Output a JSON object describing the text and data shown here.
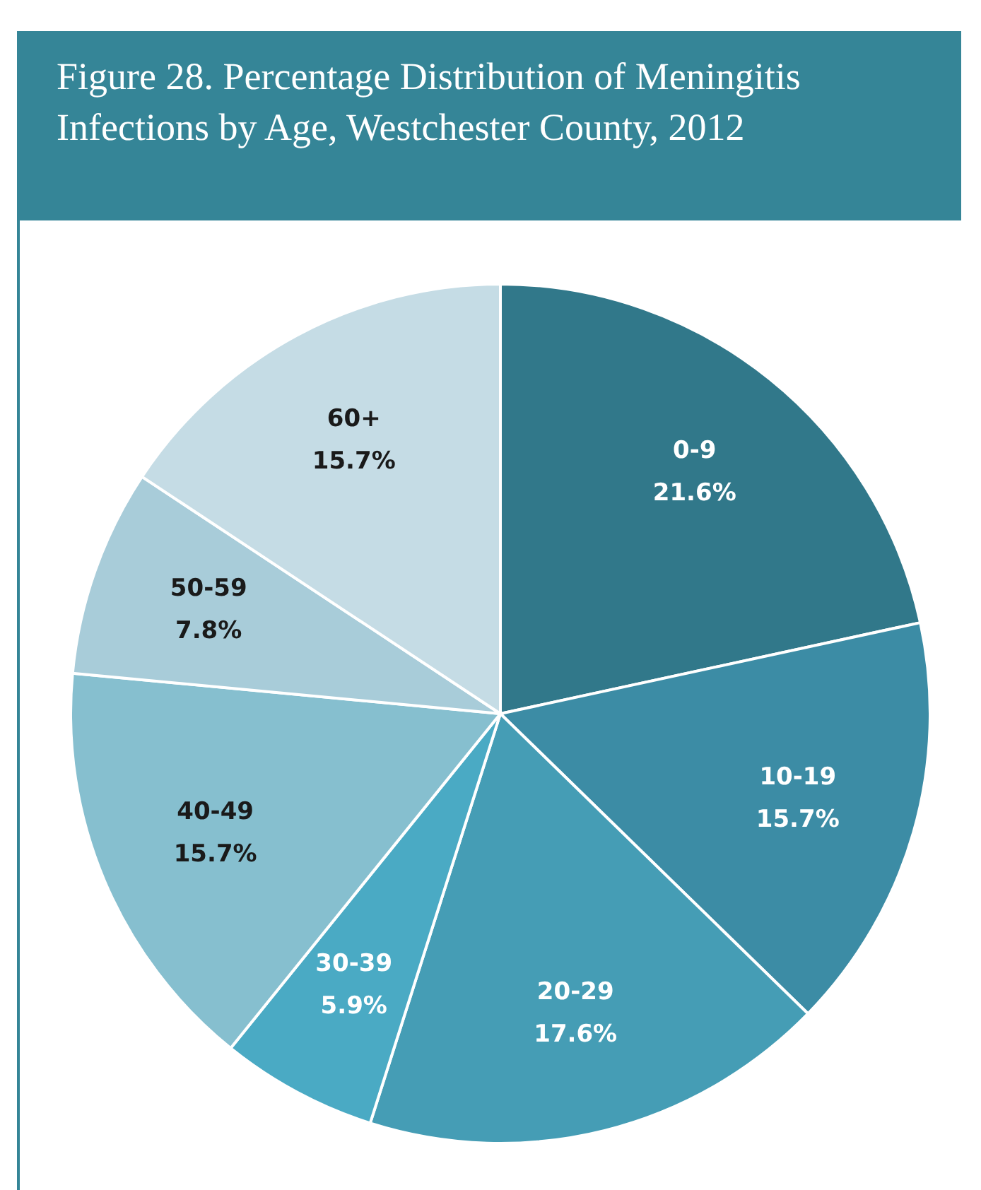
{
  "chart_data": {
    "type": "pie",
    "title": "Figure 28.  Percentage Distribution of Meningitis Infections by Age, Westchester County, 2012",
    "categories": [
      "0-9",
      "10-19",
      "20-29",
      "30-39",
      "40-49",
      "50-59",
      "60+"
    ],
    "values": [
      21.6,
      15.7,
      17.6,
      5.9,
      15.7,
      7.8,
      15.7
    ],
    "value_labels": [
      "21.6%",
      "15.7%",
      "17.6%",
      "5.9%",
      "15.7%",
      "7.8%",
      "15.7%"
    ],
    "colors": [
      "#31788a",
      "#3c8ca5",
      "#459db5",
      "#4aaac4",
      "#86bfcf",
      "#a8ccd9",
      "#c5dce5"
    ],
    "legend": false
  }
}
